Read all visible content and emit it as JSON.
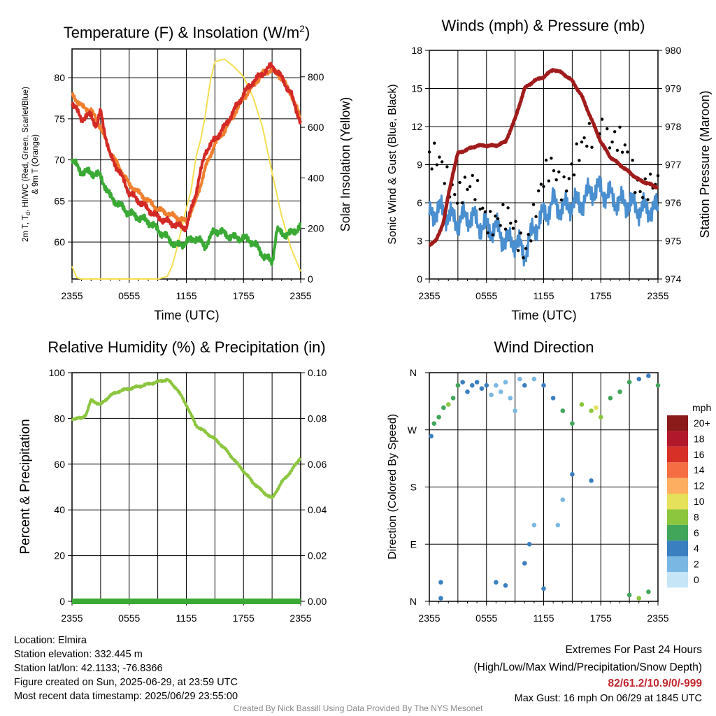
{
  "panels": {
    "temperature": {
      "title": "Temperature (F) & Insolation (W/m",
      "title_sup": "2",
      "title_end": ")",
      "ylabel_left_line1": "2m T, T",
      "ylabel_left_sub": "d",
      "ylabel_left_line1_end": ", HI/WC (Red, Green, Scarlet/Blue)",
      "ylabel_left_line2": "& 9m T (Orange)",
      "ylabel_right": "Solar Insolation (Yellow)",
      "xlabel": "Time (UTC)"
    },
    "winds": {
      "title": "Winds (mph) & Pressure (mb)",
      "ylabel_left": "Sonic Wind & Gust (Blue, Black)",
      "ylabel_right": "Station Pressure (Maroon)",
      "xlabel": "Time (UTC)"
    },
    "humidity": {
      "title": "Relative Humidity (%) & Precipitation (in)",
      "ylabel_left": "Percent & Precipitation"
    },
    "direction": {
      "title": "Wind Direction",
      "ylabel_left": "Direction (Colored By Speed)",
      "legend_title": "mph"
    }
  },
  "chart_data": [
    {
      "type": "line",
      "title": "Temperature (F) & Insolation (W/m2)",
      "xlabel": "Time (UTC)",
      "ylabel": "2m T, Td, HI/WC (Red, Green, Scarlet/Blue) & 9m T (Orange)",
      "y2label": "Solar Insolation (Yellow)",
      "x_ticks": [
        "2355",
        "0555",
        "1155",
        "1755",
        "2355"
      ],
      "ylim": [
        55.5,
        83.5
      ],
      "yticks": [
        60,
        65,
        70,
        75,
        80
      ],
      "y2lim": [
        0,
        910
      ],
      "y2ticks": [
        0,
        200,
        400,
        600,
        800
      ],
      "colors": {
        "temp": "#d42a26",
        "td": "#3aaa35",
        "t9": "#f07f2e",
        "solar": "#f5de50"
      },
      "series": [
        {
          "key": "temp",
          "axis": "left",
          "x": [
            0,
            1,
            2,
            2.6,
            3,
            3.5,
            4,
            5,
            6,
            7,
            8,
            9,
            10,
            11,
            12,
            13,
            14,
            15,
            16,
            17,
            18,
            19,
            20,
            21,
            22,
            23,
            24
          ],
          "values": [
            77,
            75,
            75.5,
            74,
            76,
            73,
            70.5,
            68.5,
            66,
            65,
            64,
            63,
            62.5,
            62,
            61.8,
            66,
            71,
            72.5,
            74,
            76,
            78,
            79.5,
            80.5,
            81.5,
            80,
            78,
            74.5
          ]
        },
        {
          "key": "t9",
          "axis": "left",
          "x": [
            0,
            1,
            2,
            3,
            4,
            5,
            6,
            7,
            8,
            9,
            10,
            11,
            12,
            13,
            14,
            15,
            16,
            17,
            18,
            19,
            20,
            21,
            22,
            23,
            24
          ],
          "values": [
            78,
            76.5,
            76,
            74,
            71,
            69,
            67,
            66,
            65,
            64,
            63.5,
            63,
            62.5,
            65,
            69,
            72,
            73.5,
            75.5,
            77.5,
            79,
            80.5,
            81,
            80,
            78,
            75
          ]
        },
        {
          "key": "td",
          "axis": "left",
          "x": [
            0,
            1,
            2,
            3,
            4,
            5,
            6,
            7,
            8,
            9,
            10,
            11,
            12,
            13,
            14,
            15,
            16,
            17,
            18,
            19,
            20,
            21,
            21.5,
            22,
            23,
            24
          ],
          "values": [
            70,
            68.5,
            68.5,
            68,
            65.5,
            64.5,
            63.5,
            63,
            62.5,
            61.5,
            60.5,
            59.5,
            60,
            60.5,
            59.5,
            61.5,
            61,
            60.5,
            60.5,
            60,
            58.5,
            57.5,
            61.5,
            61,
            61,
            62
          ]
        },
        {
          "key": "solar",
          "axis": "right",
          "x": [
            0,
            0.5,
            1,
            2,
            3,
            4,
            5,
            6,
            7,
            8,
            9,
            10,
            10.5,
            11,
            12,
            12.5,
            13,
            13.5,
            14,
            14.5,
            15,
            16,
            17,
            18,
            19,
            20,
            21,
            22,
            23,
            24
          ],
          "values": [
            50,
            5,
            0,
            0,
            0,
            0,
            0,
            0,
            0,
            0,
            0,
            10,
            50,
            120,
            280,
            350,
            480,
            550,
            650,
            780,
            860,
            870,
            840,
            800,
            720,
            600,
            420,
            250,
            120,
            30
          ]
        }
      ]
    },
    {
      "type": "line",
      "title": "Winds (mph) & Pressure (mb)",
      "xlabel": "Time (UTC)",
      "ylabel": "Sonic Wind & Gust (Blue, Black)",
      "y2label": "Station Pressure (Maroon)",
      "x_ticks": [
        "2355",
        "0555",
        "1155",
        "1755",
        "2355"
      ],
      "ylim": [
        0,
        18
      ],
      "yticks": [
        0,
        3,
        6,
        9,
        12,
        15,
        18
      ],
      "y2lim": [
        974,
        980
      ],
      "y2ticks": [
        974,
        975,
        976,
        977,
        978,
        979,
        980
      ],
      "colors": {
        "wind": "#4a8fcf",
        "gust": "#000000",
        "pressure": "#a01c1c"
      },
      "series": [
        {
          "key": "wind",
          "axis": "left",
          "x": [
            0,
            1,
            2,
            3,
            4,
            5,
            6,
            7,
            8,
            9,
            10,
            11,
            12,
            13,
            14,
            15,
            16,
            17,
            18,
            19,
            20,
            21,
            22,
            23,
            24
          ],
          "values": [
            5,
            5.5,
            5,
            4.5,
            5,
            4.5,
            4,
            4,
            3,
            3,
            2,
            4,
            5,
            6,
            5.5,
            6,
            6,
            7,
            7,
            6.5,
            6,
            6,
            5.5,
            5.5,
            5.5
          ]
        },
        {
          "key": "gust",
          "axis": "left",
          "style": "points",
          "x": [
            0,
            1,
            2,
            3,
            4,
            5,
            6,
            7,
            8,
            9,
            10,
            11,
            12,
            13,
            14,
            15,
            16,
            17,
            18,
            19,
            20,
            21,
            22,
            23,
            24
          ],
          "values": [
            8.5,
            9,
            8.5,
            7,
            6.5,
            6.5,
            5.5,
            5,
            4,
            3.5,
            3,
            5.5,
            7,
            8.5,
            8,
            9,
            9.5,
            11,
            13,
            11,
            10,
            9,
            8,
            7.5,
            6.5
          ]
        },
        {
          "key": "pressure",
          "axis": "right",
          "x": [
            0,
            0.7,
            1.5,
            2,
            2.5,
            3,
            4,
            5,
            6,
            7,
            8,
            9,
            10,
            11,
            12,
            13,
            14,
            15,
            16,
            17,
            17.5,
            18,
            19,
            20,
            21,
            22,
            23,
            24
          ],
          "values": [
            974.9,
            975,
            975.5,
            976.2,
            976.8,
            977.3,
            977.4,
            977.5,
            977.5,
            977.5,
            977.6,
            978.2,
            979,
            979.2,
            979.3,
            979.5,
            979.4,
            979.2,
            978.8,
            978.2,
            977.9,
            977.6,
            977.2,
            977,
            976.8,
            976.6,
            976.5,
            976.4
          ]
        }
      ]
    },
    {
      "type": "line",
      "title": "Relative Humidity (%) & Precipitation (in)",
      "ylabel": "Percent & Precipitation",
      "x_ticks": [
        "2355",
        "0555",
        "1155",
        "1755",
        "2355"
      ],
      "ylim": [
        0,
        100
      ],
      "yticks": [
        0,
        20,
        40,
        60,
        80,
        100
      ],
      "y2lim": [
        0,
        0.1
      ],
      "y2ticks": [
        "0.00",
        "0.02",
        "0.04",
        "0.06",
        "0.08",
        "0.10"
      ],
      "colors": {
        "rh": "#8cc63f",
        "precip": "#3aaa35"
      },
      "series": [
        {
          "key": "rh",
          "axis": "left",
          "x": [
            0,
            1,
            1.5,
            2,
            3,
            4,
            5,
            6,
            7,
            8,
            9,
            10,
            11,
            12,
            13,
            14,
            15,
            16,
            17,
            18,
            19,
            20,
            21,
            22,
            23,
            24
          ],
          "values": [
            80,
            80,
            82,
            88,
            86,
            90,
            92,
            93,
            94,
            95,
            96,
            97,
            93,
            86,
            77,
            74,
            71,
            67,
            62,
            57,
            52,
            48,
            45,
            52,
            57,
            63
          ]
        },
        {
          "key": "precip",
          "axis": "right",
          "x": [
            0,
            24
          ],
          "values": [
            0,
            0
          ]
        }
      ]
    },
    {
      "type": "scatter",
      "title": "Wind Direction",
      "ylabel": "Direction (Colored By Speed)",
      "x_ticks": [
        "2355",
        "0555",
        "1155",
        "1755",
        "2355"
      ],
      "y_ticks": [
        "N",
        "E",
        "S",
        "W",
        "N"
      ],
      "ylim": [
        0,
        360
      ],
      "legend": {
        "title": "mph",
        "labels": [
          "20+",
          "18",
          "16",
          "14",
          "12",
          "10",
          "8",
          "6",
          "4",
          "2",
          "0"
        ],
        "colors": [
          "#8b1a1a",
          "#b2182b",
          "#d73027",
          "#f46d43",
          "#fdae61",
          "#e6e15a",
          "#8cc63f",
          "#41a65a",
          "#3a7fbf",
          "#7ab8e3",
          "#c6e6f7"
        ]
      },
      "points": [
        {
          "x": 0.2,
          "y": 260,
          "speed": 4
        },
        {
          "x": 0.5,
          "y": 280,
          "speed": 6
        },
        {
          "x": 1,
          "y": 290,
          "speed": 6
        },
        {
          "x": 1.5,
          "y": 305,
          "speed": 6
        },
        {
          "x": 2,
          "y": 310,
          "speed": 8
        },
        {
          "x": 2.5,
          "y": 320,
          "speed": 6
        },
        {
          "x": 3,
          "y": 340,
          "speed": 6
        },
        {
          "x": 3.5,
          "y": 345,
          "speed": 4
        },
        {
          "x": 4,
          "y": 330,
          "speed": 4
        },
        {
          "x": 4.5,
          "y": 340,
          "speed": 4
        },
        {
          "x": 5,
          "y": 345,
          "speed": 4
        },
        {
          "x": 5.5,
          "y": 335,
          "speed": 4
        },
        {
          "x": 6,
          "y": 340,
          "speed": 4
        },
        {
          "x": 6.5,
          "y": 325,
          "speed": 2
        },
        {
          "x": 7,
          "y": 340,
          "speed": 2
        },
        {
          "x": 7.5,
          "y": 330,
          "speed": 2
        },
        {
          "x": 8,
          "y": 345,
          "speed": 2
        },
        {
          "x": 8.5,
          "y": 320,
          "speed": 2
        },
        {
          "x": 9,
          "y": 300,
          "speed": 2
        },
        {
          "x": 9.5,
          "y": 350,
          "speed": 2
        },
        {
          "x": 10,
          "y": 340,
          "speed": 4
        },
        {
          "x": 11,
          "y": 350,
          "speed": 2
        },
        {
          "x": 12,
          "y": 340,
          "speed": 4
        },
        {
          "x": 13,
          "y": 320,
          "speed": 4
        },
        {
          "x": 14,
          "y": 300,
          "speed": 6
        },
        {
          "x": 15,
          "y": 280,
          "speed": 6
        },
        {
          "x": 16,
          "y": 310,
          "speed": 8
        },
        {
          "x": 17,
          "y": 300,
          "speed": 8
        },
        {
          "x": 17.5,
          "y": 305,
          "speed": 10
        },
        {
          "x": 18,
          "y": 290,
          "speed": 8
        },
        {
          "x": 19,
          "y": 320,
          "speed": 6
        },
        {
          "x": 20,
          "y": 330,
          "speed": 6
        },
        {
          "x": 21,
          "y": 345,
          "speed": 6
        },
        {
          "x": 22,
          "y": 350,
          "speed": 4
        },
        {
          "x": 23,
          "y": 355,
          "speed": 4
        },
        {
          "x": 24,
          "y": 340,
          "speed": 6
        },
        {
          "x": 1.2,
          "y": 30,
          "speed": 4
        },
        {
          "x": 1.2,
          "y": 5,
          "speed": 4
        },
        {
          "x": 7,
          "y": 30,
          "speed": 4
        },
        {
          "x": 8,
          "y": 25,
          "speed": 4
        },
        {
          "x": 10,
          "y": 60,
          "speed": 4
        },
        {
          "x": 10.5,
          "y": 90,
          "speed": 4
        },
        {
          "x": 11,
          "y": 120,
          "speed": 2
        },
        {
          "x": 12,
          "y": 20,
          "speed": 4
        },
        {
          "x": 13.5,
          "y": 120,
          "speed": 2
        },
        {
          "x": 14,
          "y": 160,
          "speed": 2
        },
        {
          "x": 15,
          "y": 200,
          "speed": 4
        },
        {
          "x": 17,
          "y": 190,
          "speed": 4
        },
        {
          "x": 21,
          "y": 10,
          "speed": 6
        },
        {
          "x": 22,
          "y": 5,
          "speed": 8
        },
        {
          "x": 23,
          "y": 15,
          "speed": 6
        }
      ]
    }
  ],
  "footer": {
    "location": "Location: Elmira",
    "elevation": "Station elevation: 332.445 m",
    "latlon": "Station lat/lon: 42.1133; -76.8366",
    "created": "Figure created on Sun, 2025-06-29, at 23:59 UTC",
    "recent": "Most recent data timestamp: 2025/06/29 23:55:00",
    "extremes_title": "Extremes For Past 24 Hours",
    "extremes_sub": "(High/Low/Max Wind/Precipitation/Snow Depth)",
    "extremes_values": "82/61.2/10.9/0/-999",
    "max_gust": "Max Gust: 16 mph On 06/29 at 1845 UTC",
    "credit": "Created By Nick Bassill Using Data Provided By The NYS Mesonet"
  }
}
